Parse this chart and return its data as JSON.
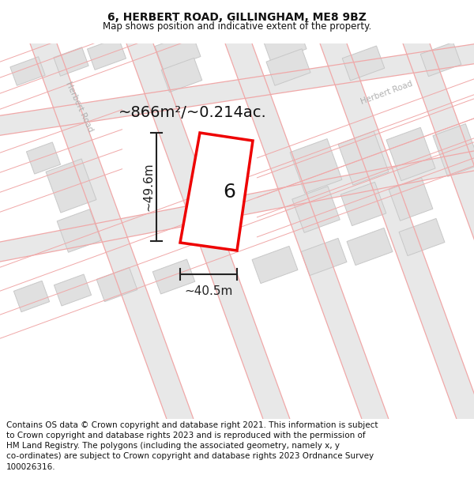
{
  "title": "6, HERBERT ROAD, GILLINGHAM, ME8 9BZ",
  "subtitle": "Map shows position and indicative extent of the property.",
  "footer": "Contains OS data © Crown copyright and database right 2021. This information is subject\nto Crown copyright and database rights 2023 and is reproduced with the permission of\nHM Land Registry. The polygons (including the associated geometry, namely x, y\nco-ordinates) are subject to Crown copyright and database rights 2023 Ordnance Survey\n100026316.",
  "area_label": "~866m²/~0.214ac.",
  "width_label": "~40.5m",
  "height_label": "~49.6m",
  "plot_number": "6",
  "map_bg": "#ffffff",
  "road_fill": "#e8e8e8",
  "building_fill": "#e0e0e0",
  "building_edge": "#c8c8c8",
  "pink_line_color": "#f0a8a8",
  "red_outline_color": "#ee0000",
  "road_label_color": "#b0b0b0",
  "dim_line_color": "#222222",
  "text_color": "#111111",
  "title_fontsize": 10,
  "subtitle_fontsize": 8.5,
  "footer_fontsize": 7.5,
  "area_label_fontsize": 14,
  "plot_label_fontsize": 18,
  "dim_label_fontsize": 11,
  "road_label_fontsize": 7.5
}
